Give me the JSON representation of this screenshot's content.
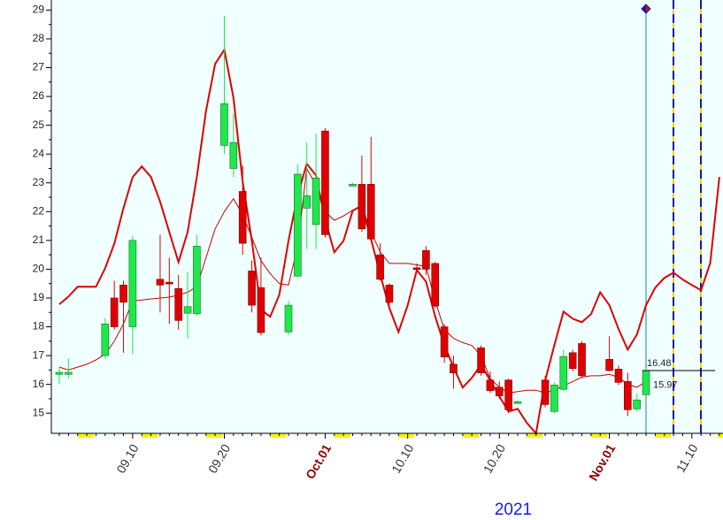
{
  "chart_data": {
    "type": "candlestick",
    "x_axis_label": "2021",
    "categories": [
      null,
      null,
      null,
      null,
      null,
      null,
      null,
      null,
      "09.10",
      null,
      null,
      null,
      null,
      null,
      null,
      null,
      null,
      null,
      "09.20",
      null,
      null,
      null,
      null,
      null,
      null,
      null,
      null,
      null,
      null,
      "Oct.01",
      null,
      null,
      null,
      null,
      null,
      null,
      null,
      null,
      "10.10",
      null,
      null,
      null,
      null,
      null,
      null,
      null,
      null,
      null,
      "10.20",
      null,
      null,
      null,
      null,
      null,
      null,
      null,
      null,
      null,
      null,
      null,
      "Nov.01",
      null,
      null,
      null,
      null,
      null,
      null,
      null,
      null,
      "11.10",
      null,
      null,
      null
    ],
    "open": [
      16.35,
      16.35,
      null,
      null,
      null,
      17.0,
      19.0,
      19.45,
      18.0,
      null,
      null,
      19.65,
      19.55,
      19.33,
      18.47,
      18.45,
      null,
      null,
      24.3,
      23.5,
      22.7,
      19.94,
      19.36,
      null,
      null,
      17.82,
      19.76,
      22.12,
      21.55,
      24.8,
      null,
      null,
      22.95,
      22.95,
      22.95,
      20.5,
      19.45,
      null,
      null,
      20.05,
      20.65,
      20.2,
      18.0,
      16.7,
      null,
      null,
      17.27,
      16.15,
      15.9,
      16.15,
      15.4,
      null,
      null,
      16.15,
      15.06,
      15.83,
      17.1,
      17.42,
      null,
      null,
      16.87,
      16.53,
      16.1,
      15.15,
      15.64,
      null,
      null,
      null,
      null,
      null,
      null,
      null,
      null
    ],
    "high": [
      16.6,
      16.9,
      null,
      null,
      null,
      18.3,
      19.6,
      19.6,
      21.15,
      null,
      null,
      21.2,
      20.4,
      19.8,
      19.9,
      21.2,
      null,
      null,
      28.8,
      25.4,
      23.6,
      20.3,
      20.4,
      null,
      null,
      18.9,
      23.65,
      24.4,
      24.7,
      24.9,
      null,
      null,
      23.0,
      23.95,
      24.6,
      20.9,
      19.5,
      null,
      null,
      20.2,
      20.8,
      20.25,
      18.1,
      17.0,
      null,
      null,
      17.35,
      16.45,
      16.1,
      16.2,
      15.45,
      null,
      null,
      16.3,
      16.07,
      17.2,
      17.2,
      17.5,
      null,
      null,
      17.67,
      16.65,
      16.4,
      15.67,
      16.55,
      null,
      null,
      null,
      null,
      null,
      null,
      null,
      null
    ],
    "low": [
      16.0,
      16.2,
      null,
      null,
      null,
      16.9,
      17.9,
      17.1,
      17.05,
      null,
      null,
      18.5,
      18.1,
      17.9,
      17.6,
      18.4,
      null,
      null,
      24.0,
      23.2,
      20.5,
      18.5,
      17.7,
      null,
      null,
      17.7,
      19.75,
      20.7,
      20.7,
      21.1,
      null,
      null,
      22.9,
      21.3,
      21.0,
      19.6,
      18.75,
      null,
      null,
      19.95,
      19.8,
      18.65,
      16.75,
      15.85,
      null,
      null,
      16.3,
      15.7,
      15.5,
      15.0,
      15.35,
      null,
      null,
      15.2,
      15.0,
      15.77,
      16.45,
      16.22,
      null,
      null,
      16.45,
      15.98,
      14.9,
      15.06,
      15.6,
      null,
      null,
      null,
      null,
      null,
      null,
      null,
      null
    ],
    "close": [
      16.42,
      16.42,
      null,
      null,
      null,
      18.1,
      18.0,
      18.85,
      21.0,
      null,
      null,
      19.45,
      19.5,
      18.22,
      18.7,
      20.8,
      null,
      null,
      25.75,
      24.4,
      20.9,
      18.75,
      17.8,
      null,
      null,
      18.75,
      23.3,
      22.55,
      23.17,
      21.2,
      null,
      null,
      22.95,
      21.4,
      21.05,
      19.65,
      18.85,
      null,
      null,
      20.0,
      20.0,
      18.72,
      16.95,
      16.4,
      null,
      null,
      16.4,
      15.78,
      15.6,
      15.12,
      15.4,
      null,
      null,
      15.3,
      15.98,
      16.97,
      16.55,
      16.3,
      null,
      null,
      16.48,
      16.07,
      15.12,
      15.46,
      16.48,
      null,
      null,
      null,
      null,
      null,
      null,
      null,
      null
    ],
    "up_color": "#1ee84a",
    "down_color": "#e00000",
    "lines": [
      {
        "color": "#e00000",
        "width": 2,
        "values": [
          18.78,
          19.05,
          19.39,
          19.39,
          19.39,
          20.03,
          20.89,
          22.12,
          23.2,
          23.57,
          23.2,
          22.34,
          21.29,
          20.25,
          21.29,
          23.2,
          25.5,
          27.13,
          27.62,
          25.96,
          23.04,
          20.99,
          18.59,
          18.35,
          19.11,
          20.99,
          22.58,
          23.66,
          23.26,
          21.72,
          20.59,
          20.99,
          22.03,
          22.21,
          21.05,
          19.82,
          18.65,
          17.82,
          18.75,
          19.97,
          19.57,
          18.35,
          17.36,
          16.6,
          15.89,
          16.23,
          16.69,
          16.14,
          15.58,
          15.06,
          15.15,
          14.66,
          14.3,
          16.14,
          17.36,
          18.53,
          18.28,
          18.16,
          18.44,
          19.2,
          18.75,
          17.92,
          17.21,
          17.73,
          18.75,
          19.36,
          19.7,
          19.88,
          19.64,
          19.45,
          19.27,
          20.22,
          23.2
        ]
      },
      {
        "color": "#cc0000",
        "width": 1,
        "values": [
          16.6,
          16.5,
          16.6,
          16.7,
          16.85,
          17.05,
          17.5,
          18.1,
          18.9,
          18.93,
          18.97,
          19.0,
          19.03,
          19.1,
          19.2,
          19.4,
          20.4,
          21.4,
          22.0,
          22.45,
          21.9,
          21.1,
          20.3,
          19.85,
          19.5,
          19.45,
          20.8,
          23.5,
          22.9,
          22.0,
          21.7,
          21.85,
          22.05,
          22.2,
          21.3,
          20.6,
          20.2,
          20.2,
          20.2,
          20.15,
          20.1,
          18.9,
          17.9,
          17.6,
          17.45,
          17.35,
          17.0,
          16.2,
          15.9,
          15.7,
          15.75,
          15.8,
          15.8,
          15.7,
          15.8,
          15.95,
          16.1,
          16.25,
          16.3,
          16.3,
          16.35,
          16.25,
          16.0,
          15.9,
          16.1,
          null,
          null,
          null,
          null,
          null,
          null,
          null,
          null
        ]
      }
    ],
    "price_labels": [
      16.48,
      15.97
    ],
    "ylim": [
      14.3,
      29.35
    ],
    "yticks": [
      15,
      16,
      17,
      18,
      19,
      20,
      21,
      22,
      23,
      24,
      25,
      26,
      27,
      28,
      29
    ],
    "background": "#f0ffff"
  }
}
